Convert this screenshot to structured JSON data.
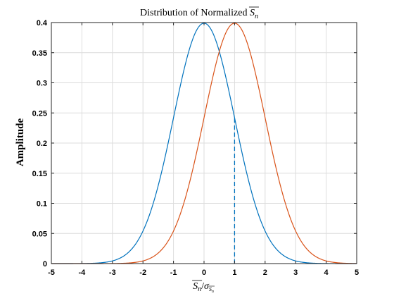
{
  "chart_data": {
    "type": "line",
    "title_text": "Distribution of Normalized ",
    "title_math_base": "S",
    "title_math_sub": "n",
    "xlabel_num_base": "S",
    "xlabel_num_sub": "n",
    "xlabel_slash": "/",
    "xlabel_den_base": "σ",
    "xlabel_den_sub_base": "S",
    "xlabel_den_sub_sub": "n",
    "ylabel": "Amplitude",
    "xlim": [
      -5,
      5
    ],
    "ylim": [
      0,
      0.4
    ],
    "xticks": [
      -5,
      -4,
      -3,
      -2,
      -1,
      0,
      1,
      2,
      3,
      4,
      5
    ],
    "xtick_labels": [
      "-5",
      "-4",
      "-3",
      "-2",
      "-1",
      "0",
      "1",
      "2",
      "3",
      "4",
      "5"
    ],
    "yticks": [
      0,
      0.05,
      0.1,
      0.15,
      0.2,
      0.25,
      0.3,
      0.35,
      0.4
    ],
    "ytick_labels": [
      "0",
      "0.05",
      "0.1",
      "0.15",
      "0.2",
      "0.25",
      "0.3",
      "0.35",
      "0.4"
    ],
    "grid": true,
    "series": [
      {
        "color": "#0072BD",
        "distribution": "normal",
        "mean": 0,
        "std": 1,
        "x": [
          -5,
          -4.5,
          -4,
          -3.5,
          -3,
          -2.5,
          -2,
          -1.5,
          -1,
          -0.5,
          0,
          0.5,
          1,
          1.5,
          2,
          2.5,
          3,
          3.5,
          4,
          4.5,
          5
        ],
        "y": [
          0.0,
          0.0,
          0.0001,
          0.0009,
          0.0044,
          0.0175,
          0.054,
          0.1295,
          0.242,
          0.3521,
          0.3989,
          0.3521,
          0.242,
          0.1295,
          0.054,
          0.0175,
          0.0044,
          0.0009,
          0.0001,
          0.0,
          0.0
        ]
      },
      {
        "color": "#D95319",
        "distribution": "normal",
        "mean": 1,
        "std": 1,
        "x": [
          -5,
          -4.5,
          -4,
          -3.5,
          -3,
          -2.5,
          -2,
          -1.5,
          -1,
          -0.5,
          0,
          0.5,
          1,
          1.5,
          2,
          2.5,
          3,
          3.5,
          4,
          4.5,
          5
        ],
        "y": [
          0.0,
          0.0,
          0.0,
          0.0,
          0.0001,
          0.0009,
          0.0044,
          0.0175,
          0.054,
          0.1295,
          0.242,
          0.3521,
          0.3989,
          0.3521,
          0.242,
          0.1295,
          0.054,
          0.0175,
          0.0044,
          0.0009,
          0.0001
        ]
      }
    ],
    "annotations": [
      {
        "type": "dashed-vertical-line",
        "color": "#0072BD",
        "x": 1,
        "y_from": 0,
        "y_to": 0.242
      }
    ]
  }
}
